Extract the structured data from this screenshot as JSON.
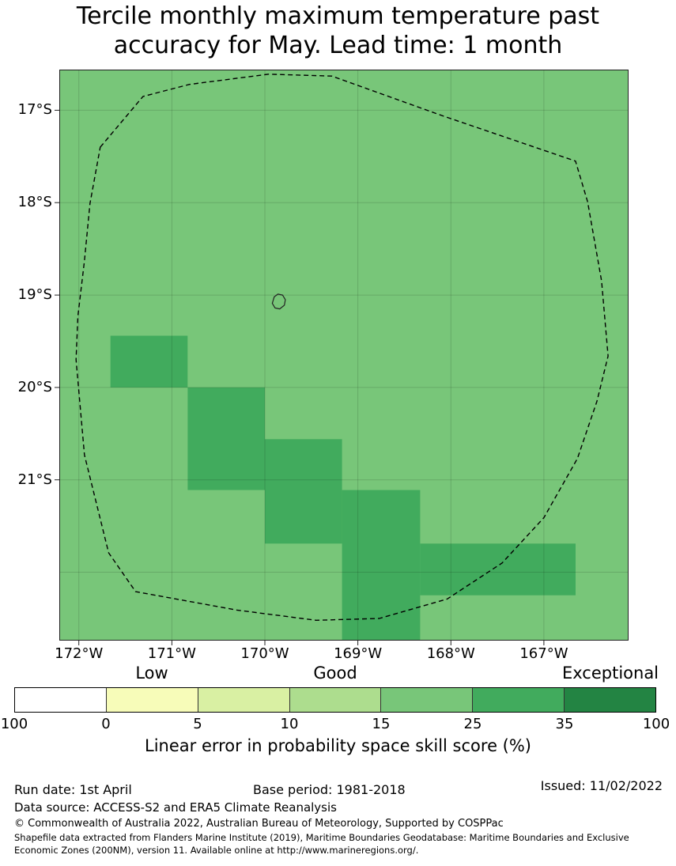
{
  "title": {
    "line1": "Tercile monthly maximum temperature past",
    "line2": "accuracy for May. Lead time: 1 month"
  },
  "map": {
    "background_color": "#78c679",
    "highlight_color": "#41ab5d",
    "grid_color": "rgba(0,0,0,0.14)",
    "frame_color": "#222222",
    "eez_line_style": "black dashed"
  },
  "footer": {
    "run_date": "Run date: 1st April",
    "base_period": "Base period: 1981-2018",
    "issued": "Issued: 11/02/2022",
    "data_source": "Data source: ACCESS-S2 and ERA5 Climate Reanalysis",
    "copyright": "© Commonwealth of Australia 2022, Australian Bureau of Meteorology, Supported by COSPPac",
    "shapefile_note": "Shapefile data extracted from Flanders Marine Institute (2019), Maritime Boundaries Geodatabase: Maritime Boundaries and Exclusive Economic Zones (200NM), version 11. Available online at http://www.marineregions.org/."
  },
  "chart_data": {
    "type": "heatmap",
    "title": "Tercile monthly maximum temperature past accuracy for May. Lead time: 1 month",
    "x_axis": {
      "tick_labels": [
        "172°W",
        "171°W",
        "170°W",
        "169°W",
        "168°W",
        "167°W"
      ],
      "range_deg_west": [
        172.21,
        166.09
      ]
    },
    "y_axis": {
      "tick_labels": [
        "17°S",
        "18°S",
        "19°S",
        "20°S",
        "21°S"
      ],
      "range_deg_south": [
        16.56,
        22.74
      ]
    },
    "grid": true,
    "colorbar": {
      "label": "Linear error in probability space skill score (%)",
      "class_labels": [
        "Low",
        "Good",
        "Exceptional"
      ],
      "tick_labels": [
        "100",
        "0",
        "5",
        "10",
        "15",
        "25",
        "35",
        "100"
      ],
      "colors": [
        "#ffffff",
        "#f7fcb9",
        "#d9f0a3",
        "#addd8e",
        "#78c679",
        "#41ab5d",
        "#238443"
      ],
      "legend_position": "bottom"
    },
    "background_skill_bin": "15-25",
    "highlight_skill_bin": "25-35",
    "highlight_cells_deg": [
      {
        "west": 171.66,
        "north": 19.44,
        "east": 170.83,
        "south": 20.0
      },
      {
        "west": 170.83,
        "north": 20.0,
        "east": 170.0,
        "south": 21.11
      },
      {
        "west": 170.0,
        "north": 20.56,
        "east": 169.17,
        "south": 21.69
      },
      {
        "west": 169.17,
        "north": 21.11,
        "east": 168.33,
        "south": 22.74
      },
      {
        "west": 168.33,
        "north": 21.69,
        "east": 166.66,
        "south": 22.25
      }
    ],
    "eez_boundary_deg": [
      [
        171.77,
        17.4
      ],
      [
        171.31,
        16.85
      ],
      [
        170.81,
        16.72
      ],
      [
        169.96,
        16.61
      ],
      [
        169.28,
        16.63
      ],
      [
        168.09,
        17.06
      ],
      [
        166.66,
        17.55
      ],
      [
        166.53,
        17.99
      ],
      [
        166.38,
        18.85
      ],
      [
        166.31,
        19.66
      ],
      [
        166.43,
        20.15
      ],
      [
        166.64,
        20.77
      ],
      [
        167.0,
        21.41
      ],
      [
        167.45,
        21.9
      ],
      [
        168.04,
        22.29
      ],
      [
        168.77,
        22.5
      ],
      [
        169.45,
        22.52
      ],
      [
        170.3,
        22.41
      ],
      [
        171.39,
        22.21
      ],
      [
        171.68,
        21.79
      ],
      [
        171.94,
        20.73
      ],
      [
        172.03,
        19.7
      ],
      [
        172.01,
        19.23
      ],
      [
        171.94,
        18.63
      ],
      [
        171.88,
        18.01
      ]
    ],
    "island_outline_deg": [
      [
        169.86,
        18.99
      ],
      [
        169.81,
        19.0
      ],
      [
        169.78,
        19.05
      ],
      [
        169.79,
        19.11
      ],
      [
        169.84,
        19.15
      ],
      [
        169.89,
        19.14
      ],
      [
        169.92,
        19.09
      ],
      [
        169.9,
        19.02
      ]
    ]
  }
}
